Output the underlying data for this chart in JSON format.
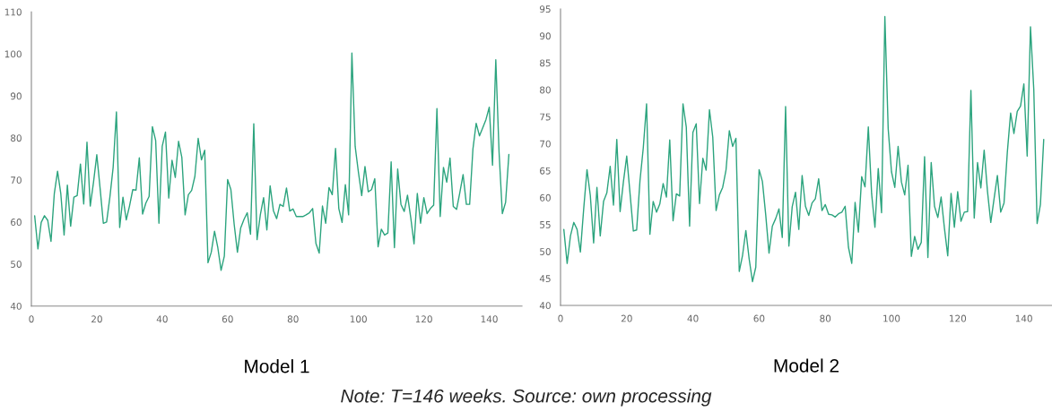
{
  "chart_data": [
    {
      "type": "line",
      "xlabel": "Model 1",
      "x": [
        1,
        2,
        3,
        4,
        5,
        6,
        7,
        8,
        9,
        10,
        11,
        12,
        13,
        14,
        15,
        16,
        17,
        18,
        19,
        20,
        21,
        22,
        23,
        24,
        25,
        26,
        27,
        28,
        29,
        30,
        31,
        32,
        33,
        34,
        35,
        36,
        37,
        38,
        39,
        40,
        41,
        42,
        43,
        44,
        45,
        46,
        47,
        48,
        49,
        50,
        51,
        52,
        53,
        54,
        55,
        56,
        57,
        58,
        59,
        60,
        61,
        62,
        63,
        64,
        65,
        66,
        67,
        68,
        69,
        70,
        71,
        72,
        73,
        74,
        75,
        76,
        77,
        78,
        79,
        80,
        81,
        82,
        83,
        84,
        85,
        86,
        87,
        88,
        89,
        90,
        91,
        92,
        93,
        94,
        95,
        96,
        97,
        98,
        99,
        100,
        101,
        102,
        103,
        104,
        105,
        106,
        107,
        108,
        109,
        110,
        111,
        112,
        113,
        114,
        115,
        116,
        117,
        118,
        119,
        120,
        121,
        122,
        123,
        124,
        125,
        126,
        127,
        128,
        129,
        130,
        131,
        132,
        133,
        134,
        135,
        136,
        137,
        138,
        139,
        140,
        141,
        142,
        143,
        144,
        145,
        146
      ],
      "series": [
        {
          "color": "#2ca47e",
          "values": [
            61.5,
            53.6,
            59.9,
            61.5,
            60.4,
            55.4,
            66.7,
            72.1,
            66.7,
            56.9,
            68.8,
            59.0,
            65.9,
            66.3,
            73.8,
            64.3,
            79.0,
            63.8,
            69.5,
            76.0,
            68.1,
            59.7,
            60.0,
            65.9,
            73.0,
            86.2,
            58.7,
            65.9,
            60.5,
            63.8,
            67.7,
            67.6,
            75.3,
            61.9,
            64.5,
            66.1,
            82.7,
            79.4,
            59.7,
            78.0,
            81.4,
            65.7,
            74.7,
            70.6,
            79.2,
            75.4,
            61.7,
            66.5,
            67.5,
            70.9,
            79.9,
            74.8,
            77.1,
            50.3,
            52.8,
            57.8,
            53.9,
            48.5,
            51.9,
            70.1,
            67.7,
            59.5,
            52.8,
            58.6,
            60.6,
            62.2,
            57.1,
            83.4,
            55.8,
            61.7,
            65.8,
            58.1,
            68.6,
            62.7,
            60.8,
            64.2,
            63.7,
            68.1,
            62.6,
            63.1,
            61.3,
            61.3,
            61.3,
            61.7,
            62.2,
            63.2,
            54.9,
            52.6,
            63.8,
            59.7,
            68.2,
            66.5,
            77.5,
            63.2,
            59.9,
            68.9,
            61.7,
            100.2,
            78.0,
            71.8,
            66.3,
            73.2,
            67.2,
            67.7,
            70.3,
            54.1,
            58.3,
            56.9,
            57.4,
            74.3,
            53.9,
            72.6,
            64.2,
            62.5,
            66.4,
            61.0,
            54.8,
            66.8,
            59.7,
            65.8,
            62.0,
            63.2,
            64.0,
            87.0,
            61.3,
            73.0,
            69.5,
            75.2,
            63.7,
            63.0,
            67.0,
            71.3,
            64.2,
            64.2,
            77.3,
            83.5,
            80.5,
            82.4,
            84.4,
            87.3,
            73.5,
            98.6,
            76.6,
            62.0,
            64.7,
            76.1
          ]
        }
      ],
      "xlim": [
        0,
        150
      ],
      "xticks": [
        0,
        20,
        40,
        60,
        80,
        100,
        120,
        140
      ],
      "ylim": [
        40,
        110
      ],
      "yticks": [
        40,
        50,
        60,
        70,
        80,
        90,
        100,
        110
      ],
      "line_style": "solid",
      "annotations": [
        "Note: T=146 weeks. Source: own processing"
      ]
    },
    {
      "type": "line",
      "xlabel": "Model 2",
      "x": [
        1,
        2,
        3,
        4,
        5,
        6,
        7,
        8,
        9,
        10,
        11,
        12,
        13,
        14,
        15,
        16,
        17,
        18,
        19,
        20,
        21,
        22,
        23,
        24,
        25,
        26,
        27,
        28,
        29,
        30,
        31,
        32,
        33,
        34,
        35,
        36,
        37,
        38,
        39,
        40,
        41,
        42,
        43,
        44,
        45,
        46,
        47,
        48,
        49,
        50,
        51,
        52,
        53,
        54,
        55,
        56,
        57,
        58,
        59,
        60,
        61,
        62,
        63,
        64,
        65,
        66,
        67,
        68,
        69,
        70,
        71,
        72,
        73,
        74,
        75,
        76,
        77,
        78,
        79,
        80,
        81,
        82,
        83,
        84,
        85,
        86,
        87,
        88,
        89,
        90,
        91,
        92,
        93,
        94,
        95,
        96,
        97,
        98,
        99,
        100,
        101,
        102,
        103,
        104,
        105,
        106,
        107,
        108,
        109,
        110,
        111,
        112,
        113,
        114,
        115,
        116,
        117,
        118,
        119,
        120,
        121,
        122,
        123,
        124,
        125,
        126,
        127,
        128,
        129,
        130,
        131,
        132,
        133,
        134,
        135,
        136,
        137,
        138,
        139,
        140,
        141,
        142,
        143,
        144,
        145,
        146
      ],
      "series": [
        {
          "color": "#2ca47e",
          "values": [
            54.1,
            47.8,
            52.9,
            55.4,
            54.1,
            49.9,
            57.9,
            65.2,
            60.4,
            51.6,
            61.9,
            52.9,
            59.3,
            60.9,
            65.8,
            58.6,
            70.8,
            57.4,
            62.9,
            67.7,
            60.8,
            53.8,
            54.0,
            63.1,
            69.2,
            77.4,
            53.2,
            59.3,
            57.3,
            58.8,
            62.6,
            60.1,
            70.7,
            55.7,
            60.7,
            60.3,
            77.4,
            73.1,
            54.7,
            72.1,
            73.7,
            58.9,
            67.3,
            65.1,
            76.3,
            71.2,
            57.6,
            60.5,
            61.9,
            65.1,
            72.4,
            69.5,
            71.0,
            46.3,
            49.3,
            53.9,
            48.6,
            44.4,
            47.1,
            65.2,
            63.0,
            56.8,
            49.7,
            54.7,
            56.1,
            57.9,
            52.6,
            76.9,
            51.0,
            58.3,
            61.0,
            54.1,
            64.1,
            58.4,
            56.7,
            59.0,
            59.8,
            63.5,
            57.6,
            58.7,
            56.9,
            56.8,
            56.4,
            57.0,
            57.3,
            58.4,
            50.8,
            47.8,
            59.1,
            53.6,
            63.9,
            62.0,
            73.1,
            60.7,
            54.5,
            65.4,
            57.2,
            93.6,
            72.8,
            64.8,
            61.9,
            69.5,
            62.9,
            60.5,
            66.0,
            49.1,
            52.8,
            50.4,
            51.7,
            67.6,
            48.9,
            66.5,
            58.4,
            56.3,
            60.1,
            54.3,
            49.2,
            60.8,
            54.5,
            61.1,
            55.6,
            57.3,
            57.4,
            79.9,
            56.2,
            66.5,
            61.8,
            68.8,
            61.2,
            55.4,
            59.8,
            64.1,
            57.3,
            59.0,
            68.4,
            75.7,
            71.9,
            76.0,
            77.0,
            81.1,
            67.7,
            91.7,
            80.0,
            55.2,
            58.7,
            70.8
          ]
        }
      ],
      "xlim": [
        0,
        148.5
      ],
      "xticks": [
        0,
        20,
        40,
        60,
        80,
        100,
        120,
        140
      ],
      "ylim": [
        40,
        95
      ],
      "yticks": [
        40,
        45,
        50,
        55,
        60,
        65,
        70,
        75,
        80,
        85,
        90,
        95
      ],
      "line_style": "solid"
    }
  ]
}
